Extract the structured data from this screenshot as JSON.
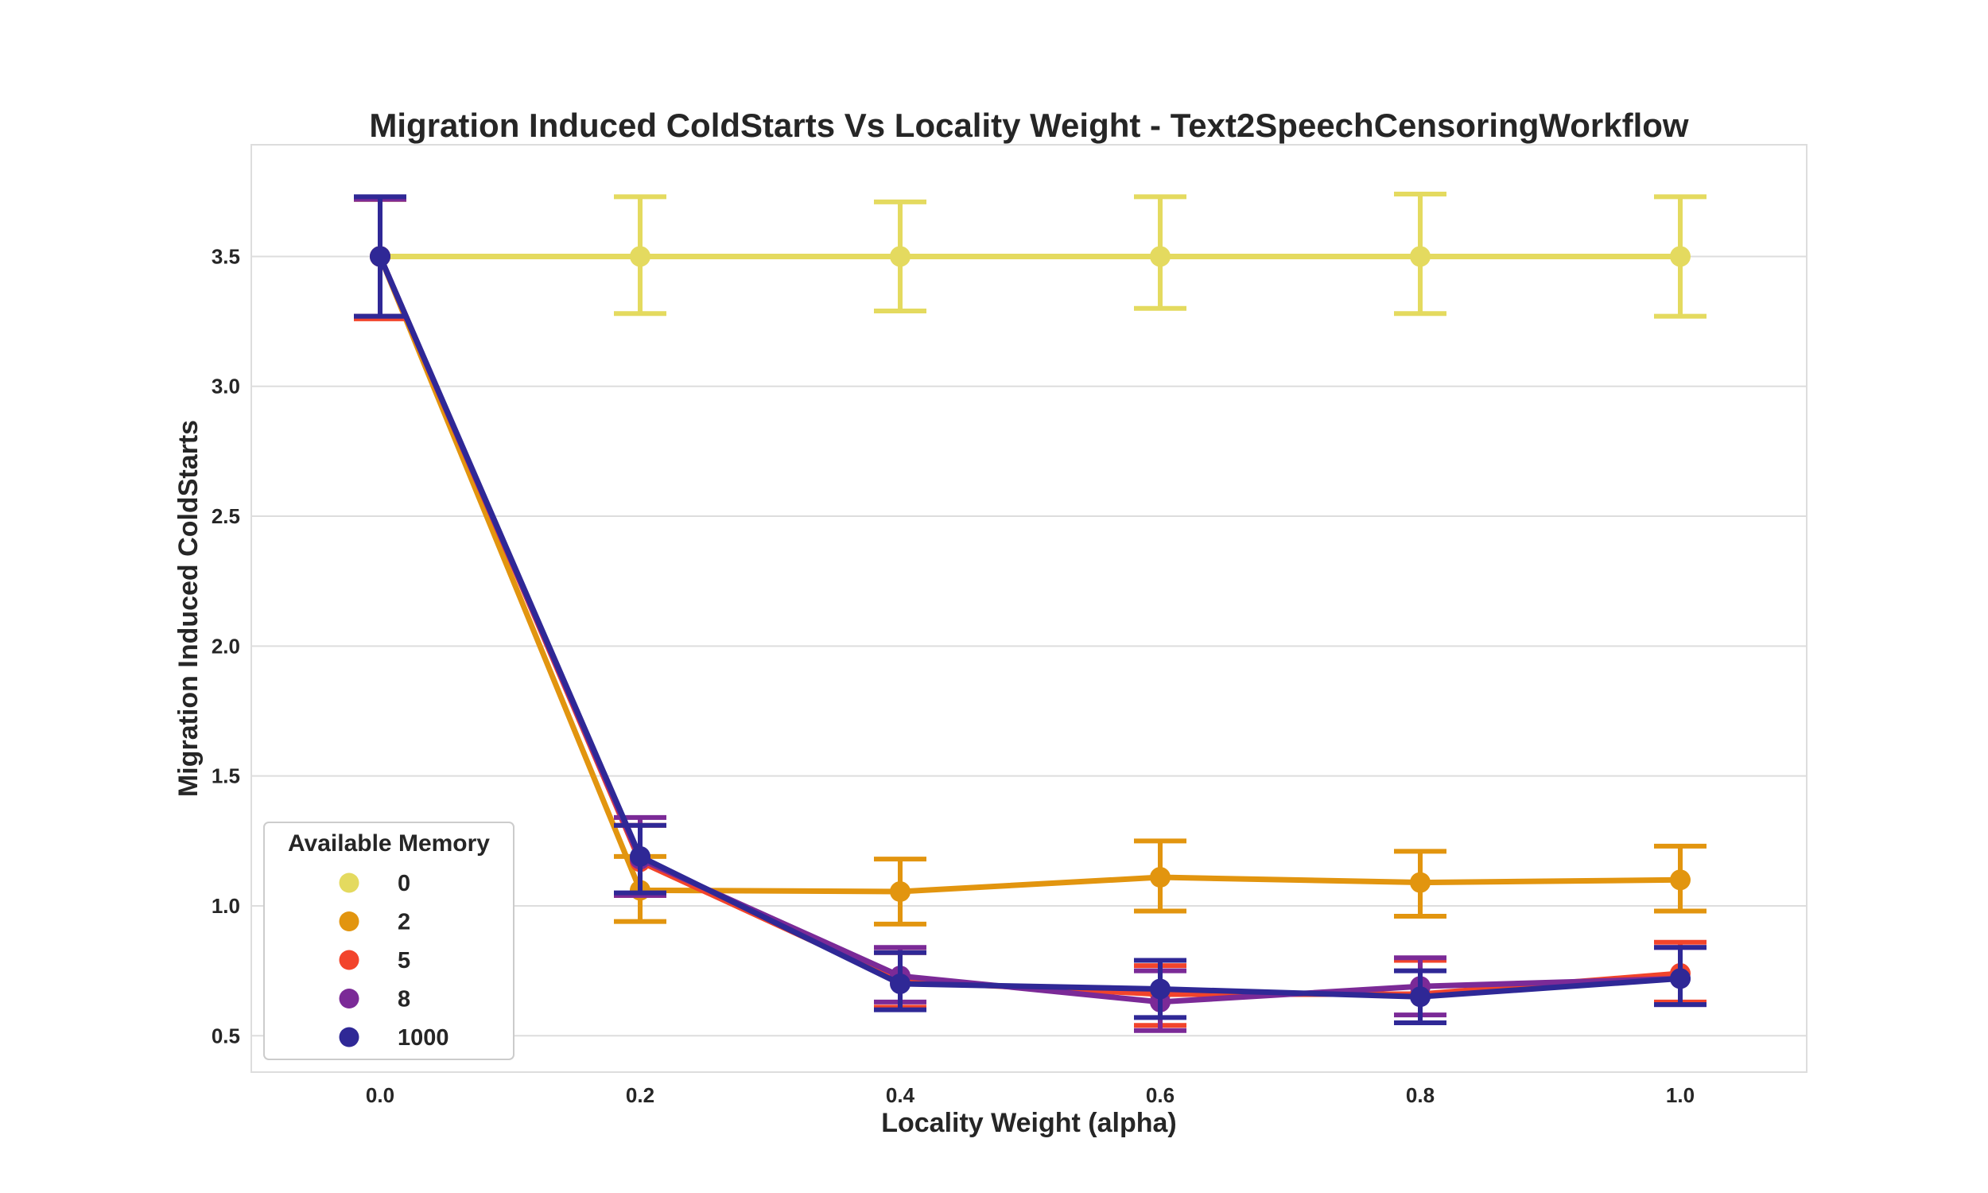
{
  "chart_data": {
    "type": "line",
    "title": "Migration Induced ColdStarts Vs Locality Weight - Text2SpeechCensoringWorkflow",
    "xlabel": "Locality Weight (alpha)",
    "ylabel": "Migration Induced ColdStarts",
    "categories": [
      "0.0",
      "0.2",
      "0.4",
      "0.6",
      "0.8",
      "1.0"
    ],
    "ylim": [
      0.36,
      3.93
    ],
    "yticks": [
      "0.5",
      "1.0",
      "1.5",
      "2.0",
      "2.5",
      "3.0",
      "3.5"
    ],
    "grid": true,
    "error_bars": true,
    "legend": {
      "title": "Available Memory",
      "position": "lower-left"
    },
    "series": [
      {
        "name": "0",
        "color": "#e4da5f",
        "values": [
          3.5,
          3.5,
          3.5,
          3.5,
          3.5,
          3.5
        ],
        "err_low": [
          3.27,
          3.28,
          3.29,
          3.3,
          3.28,
          3.27
        ],
        "err_high": [
          3.72,
          3.73,
          3.71,
          3.73,
          3.74,
          3.73
        ]
      },
      {
        "name": "2",
        "color": "#e2950f",
        "values": [
          3.5,
          1.06,
          1.055,
          1.11,
          1.09,
          1.1
        ],
        "err_low": [
          3.27,
          0.94,
          0.93,
          0.98,
          0.96,
          0.98
        ],
        "err_high": [
          3.72,
          1.19,
          1.18,
          1.25,
          1.21,
          1.23
        ]
      },
      {
        "name": "5",
        "color": "#f2442b",
        "values": [
          3.5,
          1.17,
          0.71,
          0.66,
          0.66,
          0.74
        ],
        "err_low": [
          3.26,
          1.04,
          0.61,
          0.54,
          0.55,
          0.63
        ],
        "err_high": [
          3.72,
          1.31,
          0.82,
          0.77,
          0.79,
          0.86
        ]
      },
      {
        "name": "8",
        "color": "#7b2a97",
        "values": [
          3.5,
          1.18,
          0.73,
          0.63,
          0.69,
          0.72
        ],
        "err_low": [
          3.27,
          1.04,
          0.63,
          0.52,
          0.58,
          0.62
        ],
        "err_high": [
          3.72,
          1.34,
          0.84,
          0.75,
          0.8,
          0.84
        ]
      },
      {
        "name": "1000",
        "color": "#2f2896",
        "values": [
          3.5,
          1.19,
          0.7,
          0.68,
          0.65,
          0.72
        ],
        "err_low": [
          3.27,
          1.05,
          0.6,
          0.57,
          0.55,
          0.62
        ],
        "err_high": [
          3.73,
          1.31,
          0.82,
          0.79,
          0.75,
          0.84
        ]
      }
    ]
  }
}
